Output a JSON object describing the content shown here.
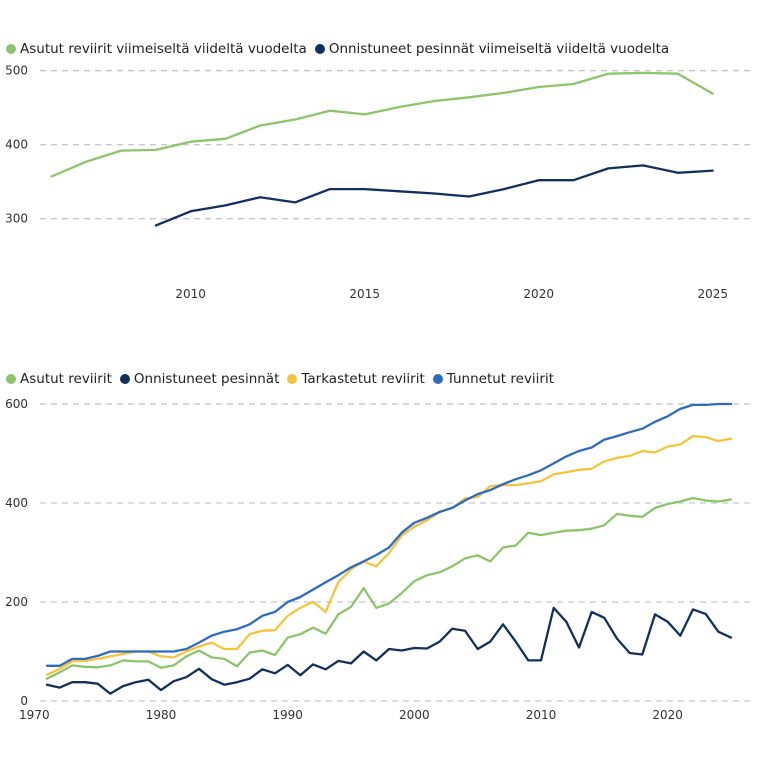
{
  "chart_data": [
    {
      "type": "line",
      "title": "",
      "xlabel": "",
      "ylabel": "",
      "x": [
        2006,
        2007,
        2008,
        2009,
        2010,
        2011,
        2012,
        2013,
        2014,
        2015,
        2016,
        2017,
        2018,
        2019,
        2020,
        2021,
        2022,
        2023,
        2024,
        2025
      ],
      "xlim": [
        2005.9,
        2026.1
      ],
      "xticks": [
        2010,
        2015,
        2020,
        2025
      ],
      "ylim": [
        255,
        505
      ],
      "yticks": [
        300,
        400,
        500
      ],
      "grid": true,
      "legend_position": "top-left",
      "series": [
        {
          "name": "Asutut reviirit viimeiseltä viideltä vuodelta",
          "color": "#8cc56b",
          "values": [
            357,
            377,
            392,
            393,
            404,
            408,
            426,
            434,
            446,
            441,
            451,
            459,
            464,
            470,
            478,
            482,
            496,
            497,
            496,
            469
          ]
        },
        {
          "name": "Onnistuneet pesinnät viimeiseltä viideltä vuodelta",
          "color": "#12305f",
          "values": [
            null,
            null,
            null,
            291,
            310,
            318,
            329,
            322,
            340,
            340,
            337,
            334,
            330,
            340,
            352,
            352,
            368,
            372,
            362,
            365
          ]
        }
      ]
    },
    {
      "type": "line",
      "title": "",
      "xlabel": "",
      "ylabel": "",
      "x": [
        1971,
        1972,
        1973,
        1974,
        1975,
        1976,
        1977,
        1978,
        1979,
        1980,
        1981,
        1982,
        1983,
        1984,
        1985,
        1986,
        1987,
        1988,
        1989,
        1990,
        1991,
        1992,
        1993,
        1994,
        1995,
        1996,
        1997,
        1998,
        1999,
        2000,
        2001,
        2002,
        2003,
        2004,
        2005,
        2006,
        2007,
        2008,
        2009,
        2010,
        2011,
        2012,
        2013,
        2014,
        2015,
        2016,
        2017,
        2018,
        2019,
        2020,
        2021,
        2022,
        2023,
        2024,
        2025
      ],
      "xlim": [
        1969.5,
        2026.5
      ],
      "xticks": [
        1970,
        1980,
        1990,
        2000,
        2010,
        2020
      ],
      "ylim": [
        0,
        610
      ],
      "yticks": [
        0,
        200,
        400,
        600
      ],
      "grid": true,
      "legend_position": "top-left",
      "series": [
        {
          "name": "Asutut reviirit",
          "color": "#8cc56b",
          "values": [
            45,
            58,
            72,
            69,
            68,
            72,
            82,
            80,
            80,
            67,
            72,
            90,
            102,
            88,
            85,
            70,
            98,
            102,
            93,
            128,
            135,
            148,
            136,
            175,
            190,
            228,
            188,
            197,
            218,
            242,
            254,
            260,
            272,
            288,
            294,
            282,
            310,
            314,
            340,
            335,
            340,
            344,
            345,
            348,
            355,
            378,
            374,
            372,
            390,
            398,
            403,
            410,
            405,
            403,
            407
          ]
        },
        {
          "name": "Onnistuneet pesinnät",
          "color": "#12305f",
          "values": [
            33,
            27,
            38,
            38,
            35,
            15,
            30,
            38,
            43,
            22,
            40,
            48,
            65,
            44,
            33,
            38,
            45,
            64,
            56,
            73,
            52,
            74,
            64,
            81,
            76,
            100,
            82,
            105,
            102,
            107,
            106,
            120,
            146,
            142,
            105,
            120,
            155,
            120,
            82,
            82,
            188,
            160,
            108,
            180,
            168,
            126,
            97,
            94,
            175,
            160,
            132,
            185,
            176,
            140,
            128
          ]
        },
        {
          "name": "Tarkastetut reviirit",
          "color": "#f5c43d",
          "values": [
            53,
            65,
            80,
            81,
            85,
            90,
            95,
            100,
            100,
            90,
            88,
            100,
            110,
            118,
            105,
            105,
            135,
            142,
            143,
            172,
            188,
            200,
            180,
            240,
            266,
            282,
            272,
            299,
            334,
            352,
            365,
            382,
            390,
            409,
            412,
            434,
            436,
            436,
            440,
            444,
            458,
            462,
            467,
            469,
            484,
            491,
            495,
            505,
            502,
            514,
            518,
            535,
            533,
            525,
            530
          ]
        },
        {
          "name": "Tunnetut reviirit",
          "color": "#2f6bbf",
          "values": [
            71,
            71,
            85,
            85,
            91,
            100,
            100,
            100,
            100,
            100,
            100,
            105,
            118,
            132,
            140,
            145,
            155,
            172,
            180,
            200,
            210,
            225,
            240,
            254,
            270,
            282,
            295,
            310,
            340,
            360,
            370,
            382,
            390,
            405,
            418,
            426,
            438,
            448,
            456,
            466,
            480,
            494,
            505,
            512,
            528,
            535,
            543,
            550,
            564,
            575,
            590,
            598,
            598,
            600,
            600
          ]
        }
      ]
    }
  ]
}
